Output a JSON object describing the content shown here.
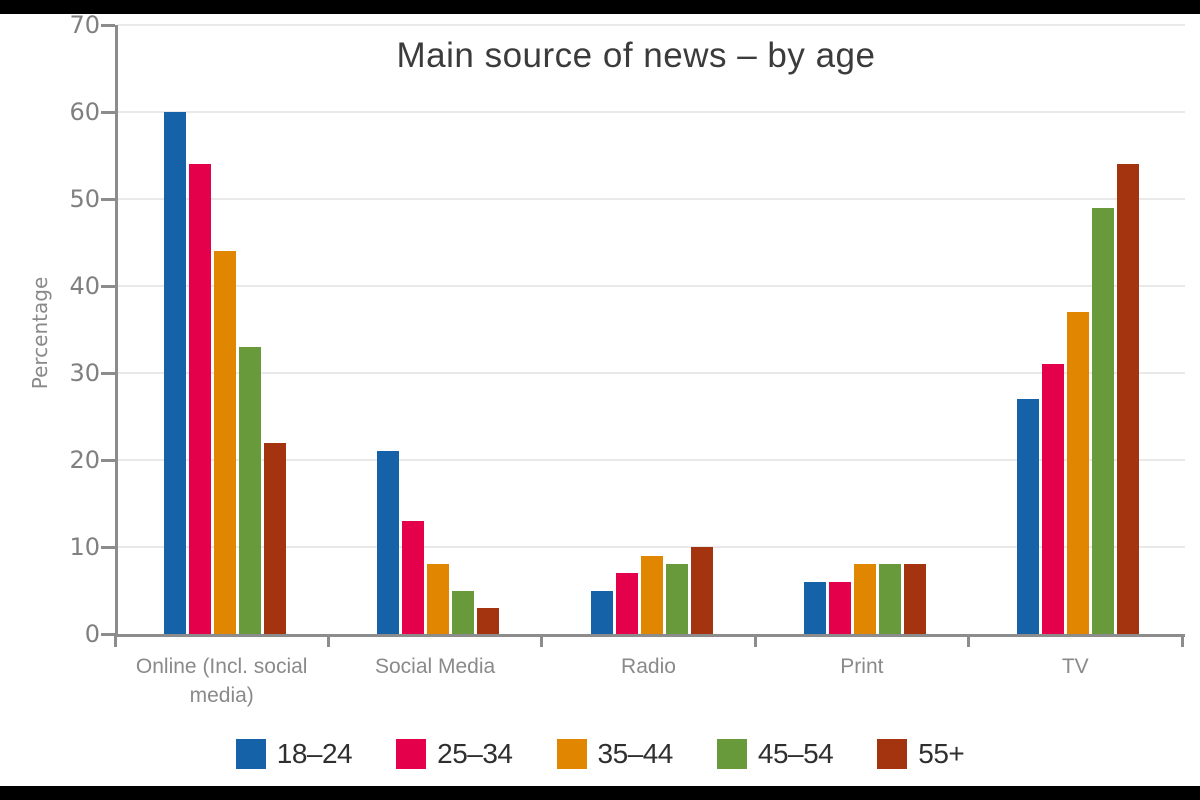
{
  "page": {
    "background": "#ffffff",
    "letterbox_color": "#000000"
  },
  "chart_data": {
    "type": "bar",
    "title": "Main source of news – by age",
    "xlabel": "",
    "ylabel": "Percentage",
    "ylim": [
      0,
      70
    ],
    "yticks": [
      0,
      10,
      20,
      30,
      40,
      50,
      60,
      70
    ],
    "grid": "horizontal",
    "legend_position": "bottom",
    "categories": [
      "Online (Incl. social media)",
      "Social Media",
      "Radio",
      "Print",
      "TV"
    ],
    "series": [
      {
        "name": "18–24",
        "color": "#1562a8",
        "values": [
          60,
          21,
          5,
          6,
          27
        ]
      },
      {
        "name": "25–34",
        "color": "#e4004a",
        "values": [
          54,
          13,
          7,
          6,
          31
        ]
      },
      {
        "name": "35–44",
        "color": "#e18600",
        "values": [
          44,
          8,
          9,
          8,
          37
        ]
      },
      {
        "name": "45–54",
        "color": "#68993a",
        "values": [
          33,
          5,
          8,
          8,
          49
        ]
      },
      {
        "name": "55+",
        "color": "#a43310",
        "values": [
          22,
          3,
          10,
          8,
          54
        ]
      }
    ],
    "colors": {
      "gridline": "#e9e9e9",
      "axis": "#8c8c8c",
      "tick_label": "#808080",
      "category_label": "#8a8a8a",
      "title": "#3b3b3b",
      "legend_text": "#2f2f2f"
    }
  }
}
